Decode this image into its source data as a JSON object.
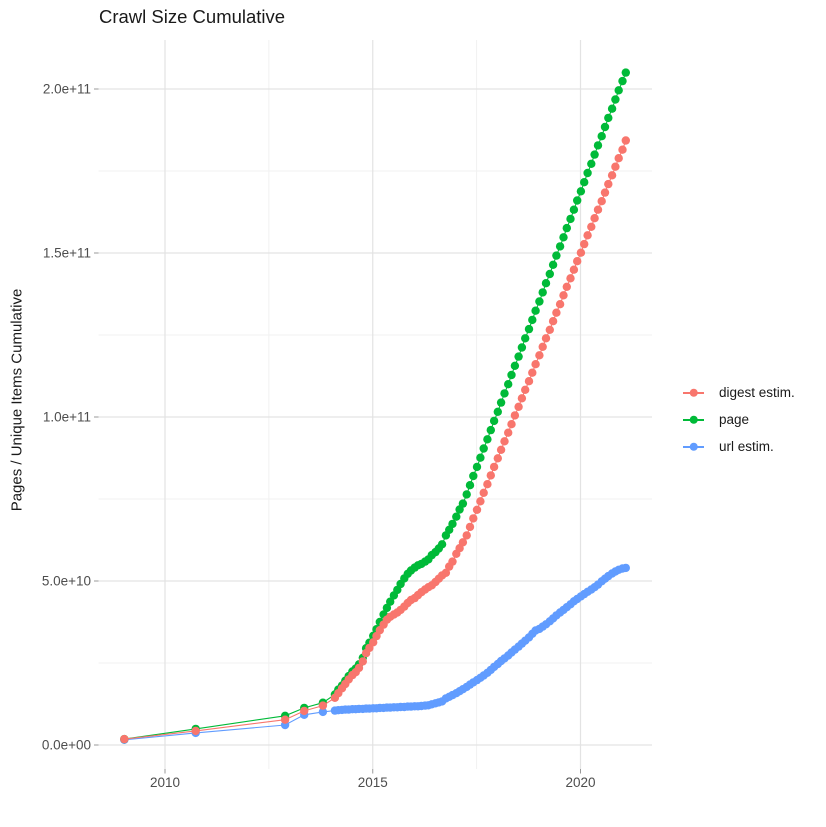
{
  "title": "Crawl Size Cumulative",
  "legend": {
    "items": [
      {
        "label": "digest estim.",
        "color": "#F8766D"
      },
      {
        "label": "page",
        "color": "#00BA38"
      },
      {
        "label": "url estim.",
        "color": "#619CFF"
      }
    ]
  },
  "chart_data": {
    "type": "line",
    "title": "Crawl Size Cumulative",
    "xlabel": "",
    "ylabel": "Pages / Unique Items Cumulative",
    "values_unit": "billions (1e9) of pages / unique items",
    "xlim": [
      2008.4,
      2021.7
    ],
    "ylim": [
      -8000000000,
      215000000000
    ],
    "grid": true,
    "legend_position": "right",
    "marker": "point",
    "x_ticks": {
      "major": [
        {
          "v": 2010,
          "label": "2010"
        },
        {
          "v": 2015,
          "label": "2015"
        },
        {
          "v": 2020,
          "label": "2020"
        }
      ],
      "minor": [
        2012.5,
        2017.5
      ]
    },
    "y_ticks": {
      "major": [
        {
          "v": 0,
          "label": "0.0e+00"
        },
        {
          "v": 50,
          "label": "5.0e+10"
        },
        {
          "v": 100,
          "label": "1.0e+11"
        },
        {
          "v": 150,
          "label": "1.5e+11"
        },
        {
          "v": 200,
          "label": "2.0e+11"
        }
      ],
      "minor": [
        25,
        75,
        125,
        175
      ]
    },
    "x": [
      2009.02,
      2010.74,
      2012.89,
      2013.35,
      2013.8,
      2014.09,
      2014.17,
      2014.26,
      2014.34,
      2014.42,
      2014.51,
      2014.59,
      2014.67,
      2014.76,
      2014.84,
      2014.92,
      2015.01,
      2015.09,
      2015.17,
      2015.26,
      2015.34,
      2015.42,
      2015.51,
      2015.59,
      2015.67,
      2015.76,
      2015.84,
      2015.92,
      2016.01,
      2016.09,
      2016.17,
      2016.26,
      2016.34,
      2016.42,
      2016.51,
      2016.59,
      2016.67,
      2016.76,
      2016.84,
      2016.92,
      2017.01,
      2017.09,
      2017.17,
      2017.26,
      2017.34,
      2017.42,
      2017.51,
      2017.59,
      2017.67,
      2017.76,
      2017.84,
      2017.92,
      2018.01,
      2018.09,
      2018.17,
      2018.26,
      2018.34,
      2018.42,
      2018.51,
      2018.59,
      2018.67,
      2018.76,
      2018.84,
      2018.92,
      2019.01,
      2019.09,
      2019.17,
      2019.26,
      2019.34,
      2019.42,
      2019.51,
      2019.59,
      2019.67,
      2019.76,
      2019.84,
      2019.92,
      2020.01,
      2020.09,
      2020.17,
      2020.26,
      2020.34,
      2020.42,
      2020.51,
      2020.59,
      2020.67,
      2020.76,
      2020.84,
      2020.92,
      2021.01,
      2021.09
    ],
    "series": [
      {
        "name": "url estim.",
        "color": "#619CFF",
        "values": [
          1.6,
          3.7,
          6.1,
          9.2,
          10.1,
          10.5,
          10.6,
          10.7,
          10.8,
          10.8,
          10.9,
          10.9,
          11.0,
          11.0,
          11.1,
          11.1,
          11.2,
          11.2,
          11.3,
          11.3,
          11.4,
          11.4,
          11.5,
          11.5,
          11.6,
          11.6,
          11.7,
          11.7,
          11.8,
          11.8,
          11.9,
          12.0,
          12.1,
          12.4,
          12.7,
          13.0,
          13.3,
          14.2,
          14.7,
          15.2,
          15.8,
          16.4,
          17.0,
          17.7,
          18.4,
          19.1,
          19.8,
          20.5,
          21.2,
          22.0,
          22.9,
          23.8,
          24.7,
          25.6,
          26.4,
          27.3,
          28.2,
          29.1,
          30.0,
          30.9,
          31.8,
          32.8,
          33.9,
          34.9,
          35.4,
          36.1,
          36.8,
          37.7,
          38.6,
          39.5,
          40.4,
          41.2,
          42.0,
          42.9,
          43.8,
          44.5,
          45.3,
          46.0,
          46.7,
          47.4,
          48.1,
          48.9,
          49.9,
          50.7,
          51.5,
          52.3,
          52.9,
          53.4,
          53.8,
          54.0
        ]
      },
      {
        "name": "page",
        "color": "#00BA38",
        "values": [
          1.8,
          4.9,
          8.9,
          11.3,
          12.9,
          15.4,
          16.9,
          18.1,
          19.6,
          21.0,
          22.4,
          23.3,
          24.6,
          26.6,
          29.5,
          31.2,
          33.3,
          35.3,
          37.5,
          39.8,
          41.8,
          43.7,
          45.6,
          47.3,
          49.1,
          50.8,
          52.2,
          53.2,
          54.1,
          54.8,
          55.2,
          55.9,
          56.6,
          57.9,
          58.8,
          59.9,
          61.2,
          63.9,
          65.6,
          67.4,
          69.6,
          71.8,
          73.6,
          76.4,
          79.2,
          82.0,
          84.8,
          87.6,
          90.4,
          93.2,
          96.0,
          98.8,
          101.6,
          104.4,
          107.2,
          110.0,
          112.8,
          115.6,
          118.4,
          121.2,
          124.0,
          126.8,
          129.6,
          132.4,
          135.2,
          138.0,
          140.8,
          143.6,
          146.4,
          149.2,
          152.0,
          154.8,
          157.6,
          160.4,
          163.2,
          166.0,
          168.8,
          171.6,
          174.4,
          177.2,
          180.0,
          182.8,
          185.6,
          188.4,
          191.2,
          194.0,
          196.8,
          199.6,
          202.4,
          205.0
        ]
      },
      {
        "name": "digest estim.",
        "color": "#F8766D",
        "values": [
          1.8,
          4.3,
          7.7,
          10.4,
          12.0,
          14.4,
          15.8,
          17.3,
          18.6,
          20.0,
          21.3,
          22.2,
          23.5,
          25.5,
          28.0,
          29.6,
          31.3,
          33.2,
          35.0,
          36.7,
          38.2,
          39.1,
          39.8,
          40.4,
          41.2,
          42.2,
          43.3,
          44.2,
          44.8,
          45.7,
          46.6,
          47.4,
          48.1,
          48.7,
          49.7,
          50.7,
          51.7,
          52.5,
          54.4,
          55.9,
          58.3,
          60.0,
          61.8,
          63.9,
          66.5,
          69.1,
          71.7,
          74.3,
          76.9,
          79.5,
          82.2,
          84.8,
          87.4,
          90.0,
          92.6,
          95.2,
          97.8,
          100.5,
          103.1,
          105.7,
          108.3,
          110.9,
          113.5,
          116.1,
          118.8,
          121.4,
          124.0,
          126.6,
          129.2,
          131.8,
          134.4,
          137.1,
          139.7,
          142.3,
          144.9,
          147.5,
          150.1,
          152.7,
          155.4,
          158.0,
          160.6,
          163.2,
          165.8,
          168.4,
          171.0,
          173.7,
          176.3,
          178.9,
          181.5,
          184.3
        ]
      }
    ]
  }
}
